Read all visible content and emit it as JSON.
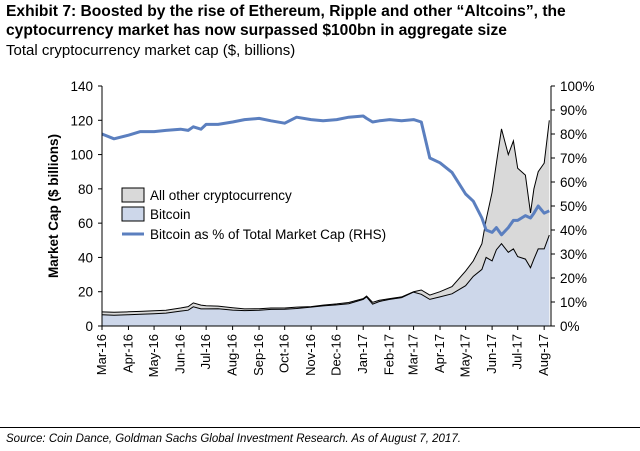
{
  "header": {
    "title": "Exhibit 7: Boosted by the rise of Ethereum, Ripple and other “Altcoins”, the cyptocurrency market has now surpassed $100bn in aggregate size",
    "subtitle": "Total cryptocurrency market cap ($, billions)"
  },
  "footer": {
    "source": "Source: Coin Dance, Goldman Sachs Global Investment Research. As of August 7, 2017."
  },
  "colors": {
    "bitcoin_fill": "#cdd7ea",
    "other_fill": "#d9d9d9",
    "line": "#5b7fbf",
    "outline": "#000000"
  },
  "chart_data": {
    "type": "area",
    "ylabel": "Market Cap ($ billions)",
    "ylim": [
      0,
      140
    ],
    "yticks": [
      0,
      20,
      40,
      60,
      80,
      100,
      120,
      140
    ],
    "y2lim": [
      0,
      100
    ],
    "y2ticks": [
      "0%",
      "10%",
      "20%",
      "30%",
      "40%",
      "50%",
      "60%",
      "70%",
      "80%",
      "90%",
      "100%"
    ],
    "x_tick_labels": [
      "Mar-16",
      "Apr-16",
      "May-16",
      "Jun-16",
      "Jul-16",
      "Aug-16",
      "Sep-16",
      "Oct-16",
      "Nov-16",
      "Dec-16",
      "Jan-17",
      "Feb-17",
      "Mar-17",
      "Apr-17",
      "May-17",
      "Jun-17",
      "Jul-17",
      "Aug-17"
    ],
    "legend_position": "middle-left",
    "x": [
      "2016-03-01",
      "2016-03-15",
      "2016-04-01",
      "2016-04-15",
      "2016-05-01",
      "2016-05-15",
      "2016-06-01",
      "2016-06-10",
      "2016-06-16",
      "2016-06-25",
      "2016-07-01",
      "2016-07-15",
      "2016-08-01",
      "2016-08-15",
      "2016-09-01",
      "2016-09-15",
      "2016-10-01",
      "2016-10-15",
      "2016-11-01",
      "2016-11-15",
      "2016-12-01",
      "2016-12-15",
      "2017-01-01",
      "2017-01-05",
      "2017-01-12",
      "2017-01-20",
      "2017-02-01",
      "2017-02-15",
      "2017-03-01",
      "2017-03-10",
      "2017-03-20",
      "2017-04-01",
      "2017-04-15",
      "2017-05-01",
      "2017-05-10",
      "2017-05-20",
      "2017-05-25",
      "2017-06-01",
      "2017-06-06",
      "2017-06-12",
      "2017-06-20",
      "2017-06-26",
      "2017-07-01",
      "2017-07-10",
      "2017-07-16",
      "2017-07-20",
      "2017-07-25",
      "2017-08-01",
      "2017-08-07"
    ],
    "series": [
      {
        "name": "All other cryptocurrency",
        "type": "area",
        "axis": "left",
        "values": [
          8.2,
          8.0,
          8.3,
          8.5,
          8.9,
          9.2,
          10.5,
          11.3,
          13.5,
          12.2,
          11.8,
          11.6,
          10.7,
          10.0,
          10.1,
          10.5,
          10.5,
          11.0,
          11.3,
          12.2,
          12.9,
          13.7,
          16.0,
          17.5,
          13.8,
          15.0,
          16.0,
          17.0,
          20.0,
          21.0,
          18.0,
          20.0,
          23.0,
          32.0,
          38.0,
          48.0,
          62.0,
          78.0,
          95.0,
          115.0,
          100.0,
          108.0,
          92.0,
          88.0,
          66.0,
          80.0,
          90.0,
          95.0,
          120.0
        ]
      },
      {
        "name": "Bitcoin",
        "type": "area",
        "axis": "left",
        "values": [
          6.6,
          6.3,
          6.6,
          6.9,
          7.2,
          7.5,
          8.7,
          9.2,
          11.2,
          10.0,
          10.0,
          10.1,
          9.3,
          9.0,
          9.2,
          9.7,
          9.8,
          10.2,
          11.0,
          11.7,
          12.3,
          13.0,
          15.5,
          17.0,
          12.8,
          14.3,
          15.5,
          16.5,
          19.8,
          18.5,
          15.5,
          17.0,
          18.8,
          23.5,
          29.0,
          33.0,
          40.0,
          38.0,
          44.5,
          48.0,
          43.0,
          45.0,
          40.5,
          39.0,
          34.0,
          39.0,
          45.0,
          45.0,
          53.0
        ]
      },
      {
        "name": "Bitcoin as % of Total Market Cap (RHS)",
        "type": "line",
        "axis": "right",
        "values": [
          80,
          78,
          79.5,
          81,
          81,
          81.5,
          82,
          81.5,
          83,
          82,
          84,
          84,
          85,
          86,
          86.5,
          85.5,
          84.5,
          87,
          86,
          85.5,
          86,
          87,
          87.5,
          86.5,
          85,
          85.5,
          86,
          85.5,
          86,
          85,
          70,
          68,
          64,
          55,
          52,
          45,
          40,
          39,
          41,
          38,
          41,
          44,
          44,
          46,
          45,
          47,
          50,
          47,
          48
        ]
      }
    ]
  }
}
